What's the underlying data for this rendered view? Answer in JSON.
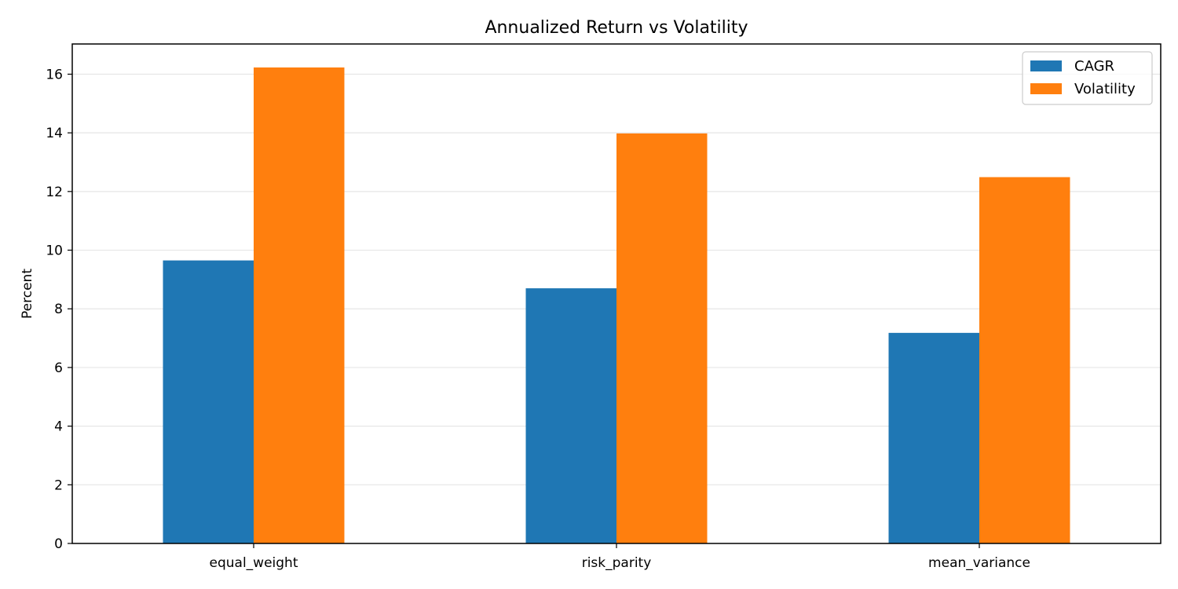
{
  "chart_data": {
    "type": "bar",
    "title": "Annualized Return vs Volatility",
    "xlabel": "",
    "ylabel": "Percent",
    "categories": [
      "equal_weight",
      "risk_parity",
      "mean_variance"
    ],
    "series": [
      {
        "name": "CAGR",
        "color": "#1f77b4",
        "values": [
          9.65,
          8.7,
          7.18
        ]
      },
      {
        "name": "Volatility",
        "color": "#ff7f0e",
        "values": [
          16.23,
          13.98,
          12.49
        ]
      }
    ],
    "ylim": [
      0,
      17.03
    ],
    "yticks": [
      0,
      2,
      4,
      6,
      8,
      10,
      12,
      14,
      16
    ],
    "grid": "y",
    "legend_position": "top-right"
  }
}
